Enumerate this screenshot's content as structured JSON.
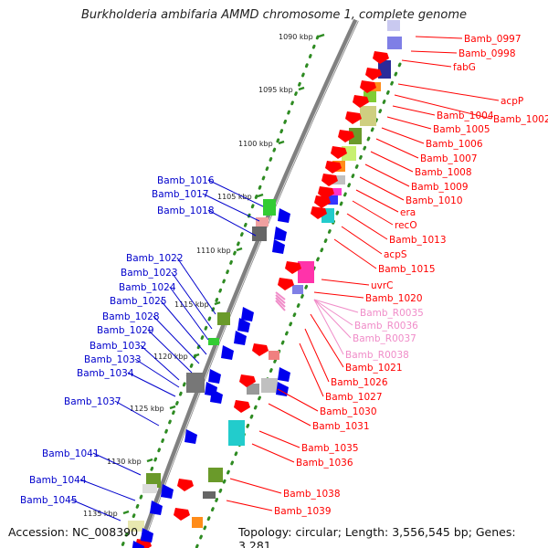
{
  "title": "Burkholderia ambifaria AMMD chromosome 1, complete genome",
  "accession": "Accession: NC_008390",
  "topology": "Topology: circular; Length: 3,556,545 bp; Genes: 3,281",
  "colors": {
    "plus_label": "#ff0000",
    "minus_label": "#0000cc",
    "rna_label": "#f08cc8",
    "backbone": "#808080",
    "tick_dot": "#2e8b22"
  },
  "ticks": [
    "1090 kbp",
    "1095 kbp",
    "1100 kbp",
    "1105 kbp",
    "1110 kbp",
    "1115 kbp",
    "1120 kbp",
    "1125 kbp",
    "1130 kbp",
    "1135 kbp"
  ],
  "labels_right": [
    "Bamb_0997",
    "Bamb_0998",
    "fabG",
    "acpP",
    "Bamb_1002",
    "Bamb_1004",
    "Bamb_1005",
    "Bamb_1006",
    "Bamb_1007",
    "Bamb_1008",
    "Bamb_1009",
    "Bamb_1010",
    "era",
    "recO",
    "Bamb_1013",
    "acpS",
    "Bamb_1015",
    "uvrC",
    "Bamb_1020",
    "Bamb_1021",
    "Bamb_1026",
    "Bamb_1027",
    "Bamb_1030",
    "Bamb_1031",
    "Bamb_1035",
    "Bamb_1036",
    "Bamb_1038",
    "Bamb_1039"
  ],
  "labels_rna": [
    "Bamb_R0035",
    "Bamb_R0036",
    "Bamb_R0037",
    "Bamb_R0038"
  ],
  "labels_left": [
    "Bamb_1016",
    "Bamb_1017",
    "Bamb_1018",
    "Bamb_1022",
    "Bamb_1023",
    "Bamb_1024",
    "Bamb_1025",
    "Bamb_1028",
    "Bamb_1029",
    "Bamb_1032",
    "Bamb_1033",
    "Bamb_1034",
    "Bamb_1037",
    "Bamb_1041",
    "Bamb_1044",
    "Bamb_1045"
  ]
}
